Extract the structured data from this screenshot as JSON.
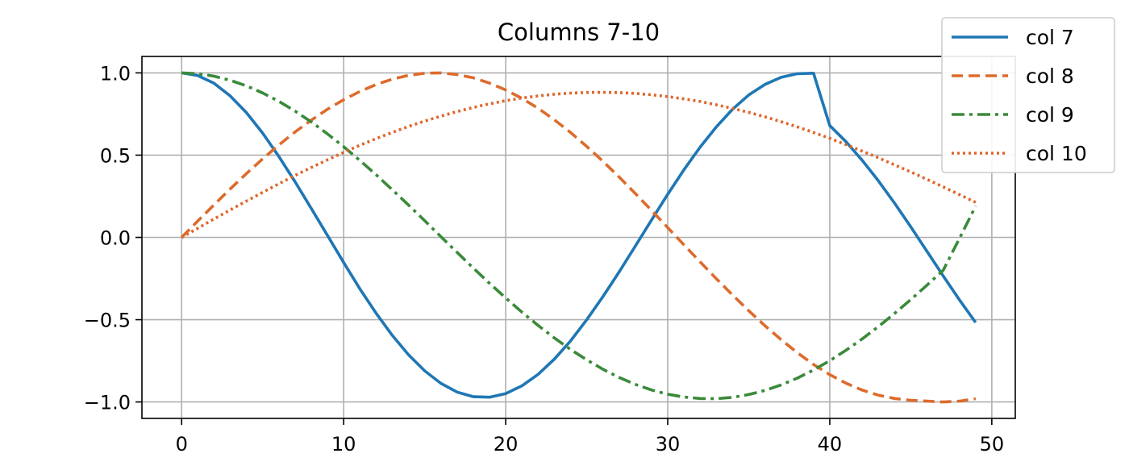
{
  "chart_data": {
    "type": "line",
    "title": "Columns 7-10",
    "xlabel": "",
    "ylabel": "",
    "xlim": [
      -2.45,
      51.45
    ],
    "ylim": [
      -1.1,
      1.1
    ],
    "xticks": [
      0,
      10,
      20,
      30,
      40,
      50
    ],
    "xtick_labels": [
      "0",
      "10",
      "20",
      "30",
      "40",
      "50"
    ],
    "yticks": [
      1.0,
      0.5,
      0.0,
      -0.5,
      -1.0
    ],
    "ytick_labels": [
      "1.0",
      "0.5",
      "0.0",
      "−0.5",
      "−1.0"
    ],
    "grid": true,
    "legend_position": "top-right",
    "x": [
      0,
      1,
      2,
      3,
      4,
      5,
      6,
      7,
      8,
      9,
      10,
      11,
      12,
      13,
      14,
      15,
      16,
      17,
      18,
      19,
      20,
      21,
      22,
      23,
      24,
      25,
      26,
      27,
      28,
      29,
      30,
      31,
      32,
      33,
      34,
      35,
      36,
      37,
      38,
      39,
      40,
      41,
      42,
      43,
      44,
      45,
      46,
      47,
      48,
      49
    ],
    "series": [
      {
        "name": "col 7",
        "color": "#1f77b4",
        "dash": "solid",
        "values": [
          1.0,
          0.984,
          0.937,
          0.86,
          0.758,
          0.634,
          0.492,
          0.338,
          0.176,
          0.012,
          -0.153,
          -0.312,
          -0.46,
          -0.595,
          -0.713,
          -0.811,
          -0.887,
          -0.94,
          -0.968,
          -0.971,
          -0.949,
          -0.902,
          -0.832,
          -0.74,
          -0.629,
          -0.501,
          -0.36,
          -0.21,
          -0.053,
          0.106,
          0.262,
          0.411,
          0.549,
          0.672,
          0.779,
          0.866,
          0.93,
          0.973,
          0.995,
          0.998,
          0.68,
          0.582,
          0.469,
          0.344,
          0.208,
          0.064,
          -0.085,
          -0.234,
          -0.379,
          -0.517
        ]
      },
      {
        "name": "col 8",
        "color": "#dd6b2c",
        "dash": "dashed",
        "values": [
          0.0,
          0.1,
          0.198,
          0.295,
          0.388,
          0.477,
          0.562,
          0.641,
          0.713,
          0.779,
          0.837,
          0.887,
          0.929,
          0.962,
          0.985,
          0.998,
          1.0,
          0.99,
          0.97,
          0.938,
          0.896,
          0.845,
          0.785,
          0.715,
          0.638,
          0.553,
          0.463,
          0.367,
          0.267,
          0.164,
          0.06,
          -0.045,
          -0.149,
          -0.251,
          -0.35,
          -0.446,
          -0.537,
          -0.622,
          -0.701,
          -0.772,
          -0.834,
          -0.886,
          -0.928,
          -0.959,
          -0.979,
          -0.99,
          -0.995,
          -1.0,
          -0.995,
          -0.98
        ]
      },
      {
        "name": "col 9",
        "color": "#3a8a3a",
        "dash": "dashdot",
        "values": [
          1.0,
          0.995,
          0.98,
          0.955,
          0.921,
          0.878,
          0.827,
          0.768,
          0.702,
          0.629,
          0.551,
          0.468,
          0.381,
          0.29,
          0.197,
          0.102,
          0.005,
          -0.091,
          -0.186,
          -0.279,
          -0.368,
          -0.454,
          -0.535,
          -0.611,
          -0.681,
          -0.744,
          -0.801,
          -0.851,
          -0.893,
          -0.927,
          -0.953,
          -0.97,
          -0.979,
          -0.98,
          -0.972,
          -0.955,
          -0.93,
          -0.896,
          -0.855,
          -0.806,
          -0.749,
          -0.686,
          -0.617,
          -0.542,
          -0.462,
          -0.378,
          -0.29,
          -0.2,
          -0.007,
          0.19
        ]
      },
      {
        "name": "col 10",
        "color": "#e0652a",
        "dash": "dotted",
        "values": [
          0.0,
          0.056,
          0.112,
          0.167,
          0.221,
          0.274,
          0.326,
          0.377,
          0.425,
          0.472,
          0.517,
          0.56,
          0.6,
          0.638,
          0.674,
          0.707,
          0.737,
          0.765,
          0.79,
          0.812,
          0.831,
          0.847,
          0.86,
          0.87,
          0.877,
          0.881,
          0.882,
          0.88,
          0.875,
          0.867,
          0.856,
          0.842,
          0.826,
          0.806,
          0.784,
          0.76,
          0.733,
          0.703,
          0.672,
          0.638,
          0.602,
          0.564,
          0.525,
          0.484,
          0.441,
          0.398,
          0.353,
          0.307,
          0.26,
          0.213
        ]
      }
    ]
  }
}
